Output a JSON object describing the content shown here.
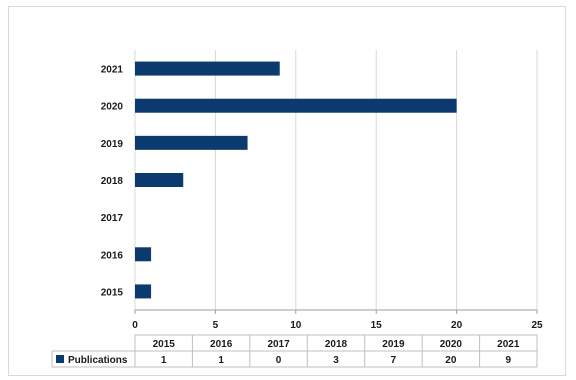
{
  "chart_data": {
    "type": "bar",
    "orientation": "horizontal",
    "categories": [
      "2015",
      "2016",
      "2017",
      "2018",
      "2019",
      "2020",
      "2021"
    ],
    "series": [
      {
        "name": "Publications",
        "values": [
          1,
          1,
          0,
          3,
          7,
          20,
          9
        ]
      }
    ],
    "x_ticks": [
      0,
      5,
      10,
      15,
      20,
      25
    ],
    "xlim": [
      0,
      25
    ],
    "grid": "vertical",
    "data_table": true,
    "colors": {
      "bar": "#0b3a6e",
      "grid": "#d9d9d9",
      "table_border": "#bfbfbf"
    }
  }
}
